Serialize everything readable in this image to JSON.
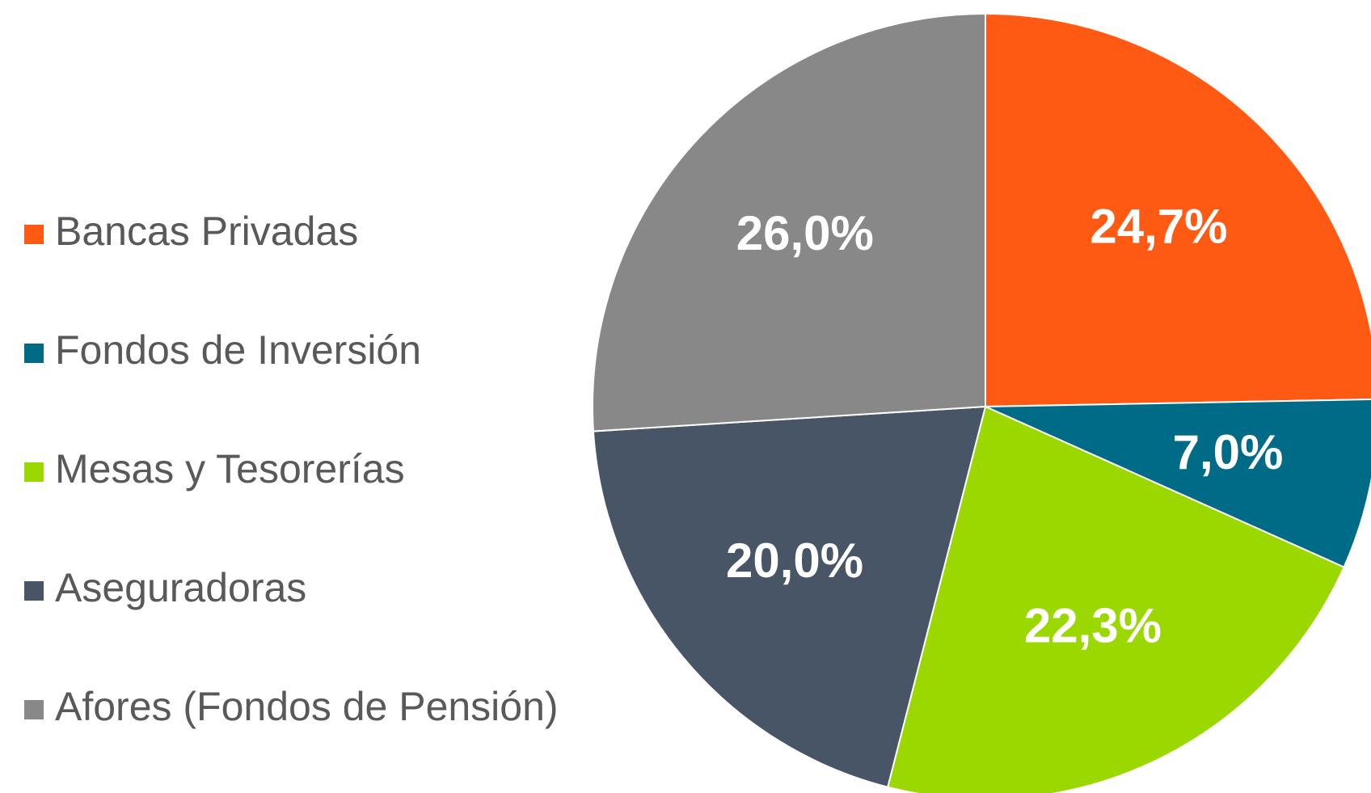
{
  "chart_data": {
    "type": "pie",
    "categories": [
      "Bancas Privadas",
      "Fondos de Inversión",
      "Mesas y Tesorerías",
      "Aseguradoras",
      "Afores (Fondos de Pensión)"
    ],
    "values": [
      24.7,
      7.0,
      22.3,
      20.0,
      26.0
    ],
    "value_labels": [
      "24,7%",
      "7,0%",
      "22,3%",
      "20,0%",
      "26,0%"
    ],
    "colors": [
      "#FF5A14",
      "#006B87",
      "#9BD800",
      "#475566",
      "#888888"
    ],
    "legend": "left"
  }
}
